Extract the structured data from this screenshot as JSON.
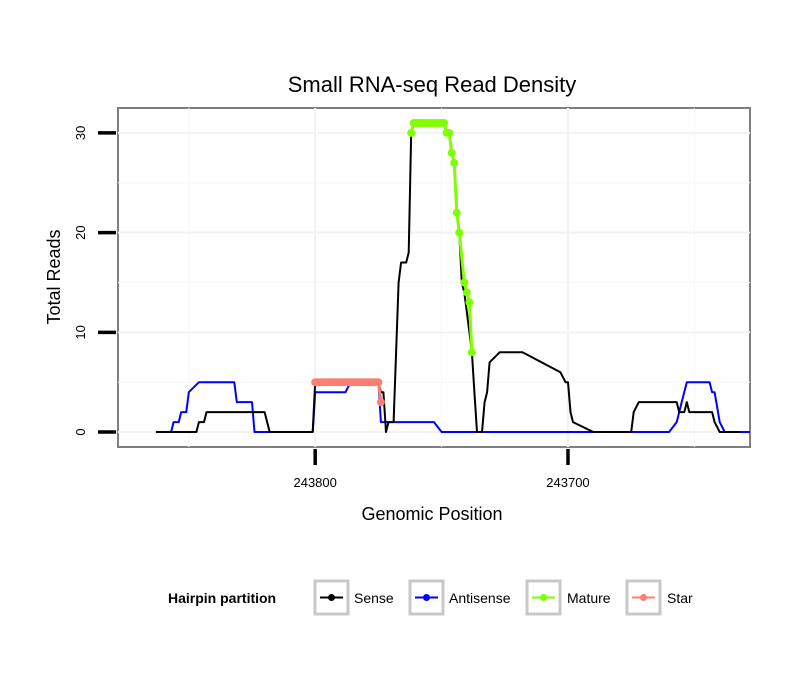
{
  "chart_data": {
    "type": "line",
    "title": "Small RNA-seq Read Density",
    "xlabel": "Genomic Position",
    "ylabel": "Total Reads",
    "x_reversed": true,
    "xlim": [
      243878,
      243628
    ],
    "ylim": [
      -1.5,
      32.5
    ],
    "x_ticks": [
      243800,
      243700
    ],
    "x_tick_labels": [
      "243800",
      "243700"
    ],
    "y_ticks": [
      0,
      10,
      20,
      30
    ],
    "y_tick_labels": [
      "0",
      "10",
      "20",
      "30"
    ],
    "legend": {
      "title": "Hairpin partition",
      "position": "bottom",
      "entries": [
        {
          "label": "Sense",
          "color": "#000000"
        },
        {
          "label": "Antisense",
          "color": "#0000ff"
        },
        {
          "label": "Mature",
          "color": "#7fff00"
        },
        {
          "label": "Star",
          "color": "#fa8072"
        }
      ]
    },
    "series": [
      {
        "name": "Sense",
        "color": "#000000",
        "x": [
          243863,
          243847,
          243846,
          243844,
          243843,
          243820,
          243818,
          243812,
          243801,
          243800,
          243796,
          243795,
          243794,
          243793,
          243791,
          243790,
          243789,
          243788,
          243785,
          243784,
          243783,
          243782,
          243781,
          243775,
          243774,
          243773,
          243772,
          243771,
          243769,
          243767,
          243766,
          243764,
          243763,
          243762,
          243761,
          243760,
          243759,
          243757,
          243756,
          243755,
          243754,
          243752,
          243751,
          243750,
          243749,
          243748,
          243747,
          243746,
          243745,
          243744,
          243743,
          243742,
          243741,
          243740,
          243738,
          243737,
          243736,
          243735,
          243734,
          243733,
          243732,
          243731,
          243727,
          243726,
          243725,
          243723,
          243719,
          243718,
          243703,
          243701,
          243700,
          243699,
          243698,
          243690,
          243688,
          243675,
          243674,
          243672,
          243670,
          243669,
          243667,
          243666,
          243664,
          243662,
          243660,
          243659,
          243658,
          243657,
          243656,
          243655,
          243654,
          243653,
          243652,
          243651,
          243650,
          243649,
          243647,
          243646,
          243645,
          243644,
          243643,
          243642,
          243640,
          243638,
          243636,
          243634,
          243632
        ],
        "y": [
          0,
          0,
          1,
          1,
          2,
          2,
          0,
          0,
          0,
          5,
          5,
          5,
          5,
          5,
          5,
          5,
          5,
          5,
          5,
          5,
          5,
          5,
          5,
          5,
          4,
          4,
          0,
          1,
          1,
          15,
          17,
          17,
          18,
          30,
          31,
          31,
          31,
          31,
          31,
          31,
          31,
          31,
          31,
          31,
          31,
          30,
          30,
          28,
          27,
          22,
          20,
          15,
          14,
          12,
          8,
          4,
          0,
          0,
          0,
          3,
          4,
          7,
          8,
          8,
          8,
          8,
          8,
          8,
          6,
          5,
          5,
          2,
          1,
          0,
          0,
          0,
          2,
          3,
          3,
          3,
          3,
          3,
          3,
          3,
          3,
          3,
          3,
          3,
          2,
          2,
          2,
          3,
          2,
          2,
          2,
          2,
          2,
          2,
          2,
          2,
          2,
          1,
          0,
          0,
          0,
          0,
          0
        ]
      },
      {
        "name": "Antisense",
        "color": "#0000ff",
        "x": [
          243857,
          243856,
          243854,
          243853,
          243851,
          243850,
          243846,
          243832,
          243831,
          243827,
          243825,
          243824,
          243821,
          243820,
          243801,
          243800,
          243799,
          243788,
          243786,
          243785,
          243783,
          243782,
          243775,
          243774,
          243763,
          243761,
          243760,
          243753,
          243750,
          243747,
          243746,
          243744,
          243743,
          243740,
          243739,
          243737,
          243700,
          243690,
          243670,
          243660,
          243657,
          243655,
          243653,
          243650,
          243648,
          243646,
          243645,
          243644,
          243643,
          243642,
          243640,
          243638,
          243628
        ],
        "y": [
          0,
          1,
          1,
          2,
          2,
          4,
          5,
          5,
          3,
          3,
          3,
          0,
          0,
          0,
          0,
          4,
          4,
          4,
          5,
          5,
          5,
          5,
          5,
          1,
          1,
          1,
          1,
          1,
          0,
          0,
          0,
          0,
          0,
          0,
          0,
          0,
          0,
          0,
          0,
          0,
          1,
          3,
          5,
          5,
          5,
          5,
          5,
          5,
          4,
          4,
          1,
          0,
          0
        ]
      },
      {
        "name": "Mature",
        "color": "#7fff00",
        "style": "points-line",
        "x": [
          243762,
          243761,
          243760,
          243759,
          243758,
          243757,
          243756,
          243755,
          243754,
          243753,
          243752,
          243751,
          243750,
          243749,
          243748,
          243747,
          243746,
          243745,
          243744,
          243743,
          243741,
          243740,
          243739,
          243738
        ],
        "y": [
          30,
          31,
          31,
          31,
          31,
          31,
          31,
          31,
          31,
          31,
          31,
          31,
          31,
          31,
          30,
          30,
          28,
          27,
          22,
          20,
          15,
          14,
          13,
          8
        ]
      },
      {
        "name": "Star",
        "color": "#fa8072",
        "style": "points-line",
        "x": [
          243800,
          243799,
          243798,
          243797,
          243796,
          243795,
          243794,
          243793,
          243792,
          243791,
          243790,
          243789,
          243788,
          243787,
          243786,
          243785,
          243784,
          243783,
          243782,
          243781,
          243780,
          243779,
          243778,
          243777,
          243776,
          243775,
          243774
        ],
        "y": [
          5,
          5,
          5,
          5,
          5,
          5,
          5,
          5,
          5,
          5,
          5,
          5,
          5,
          5,
          5,
          5,
          5,
          5,
          5,
          5,
          5,
          5,
          5,
          5,
          5,
          5,
          3
        ]
      }
    ]
  }
}
